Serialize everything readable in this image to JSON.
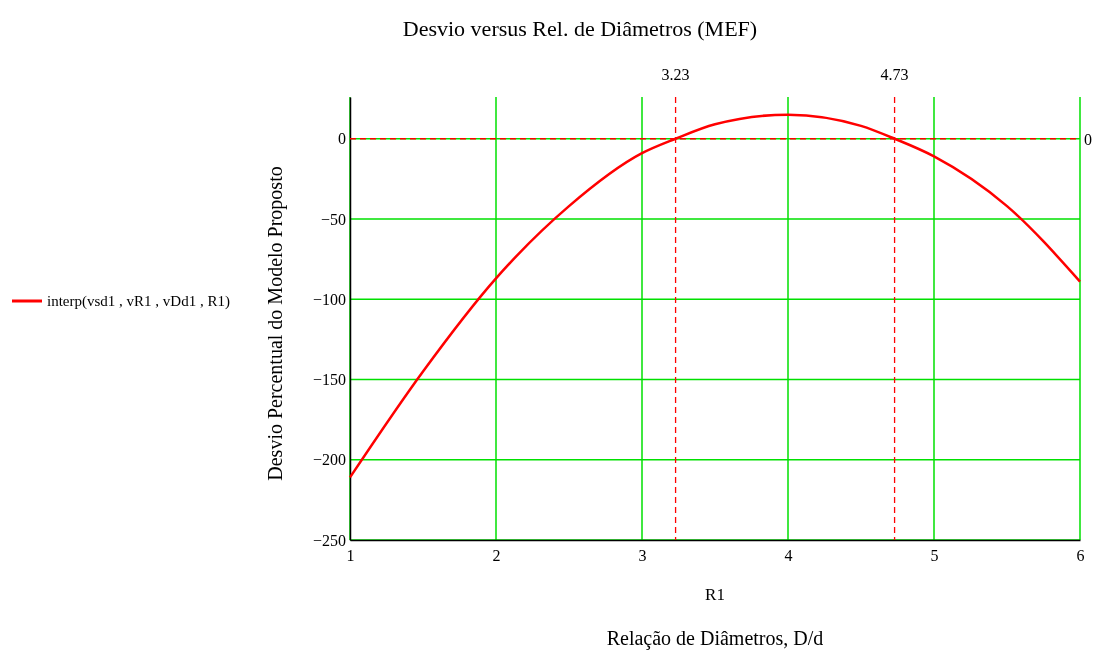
{
  "chart_data": {
    "type": "line",
    "title": "Desvio versus Rel. de Diâmetros (MEF)",
    "xlabel": "R1",
    "ylabel": "Desvio Percentual do Modelo Proposto",
    "annotations": [
      "Relação de Diâmetros, D/d"
    ],
    "series": [
      {
        "name": "interp(vsd1 , vR1 , vDd1 , R1)",
        "color": "#ff0000",
        "x": [
          1,
          1.5,
          2,
          2.5,
          3,
          3.23,
          3.5,
          4,
          4.5,
          4.73,
          5,
          5.5,
          6
        ],
        "values": [
          -211,
          -145,
          -87,
          -42,
          -9,
          0,
          9,
          15,
          8,
          0,
          -11,
          -42,
          -89
        ]
      }
    ],
    "xlim": [
      1,
      6
    ],
    "xticks": [
      1,
      2,
      3,
      4,
      5,
      6
    ],
    "ylim": [
      -250,
      26
    ],
    "yticks": [
      -250,
      -200,
      -150,
      -100,
      -50,
      0
    ],
    "grid": true,
    "legend": "left",
    "line_style": "solid",
    "marker": "none",
    "ref_lines": [
      {
        "axis": "x",
        "value": 3.23,
        "label": "3.23",
        "color": "#ff0000",
        "line_style": "dashed"
      },
      {
        "axis": "x",
        "value": 4.73,
        "label": "4.73",
        "color": "#ff0000",
        "line_style": "dashed"
      },
      {
        "axis": "y",
        "value": 0,
        "label": "0",
        "color": "#ff0000",
        "line_style": "dashed"
      }
    ]
  }
}
